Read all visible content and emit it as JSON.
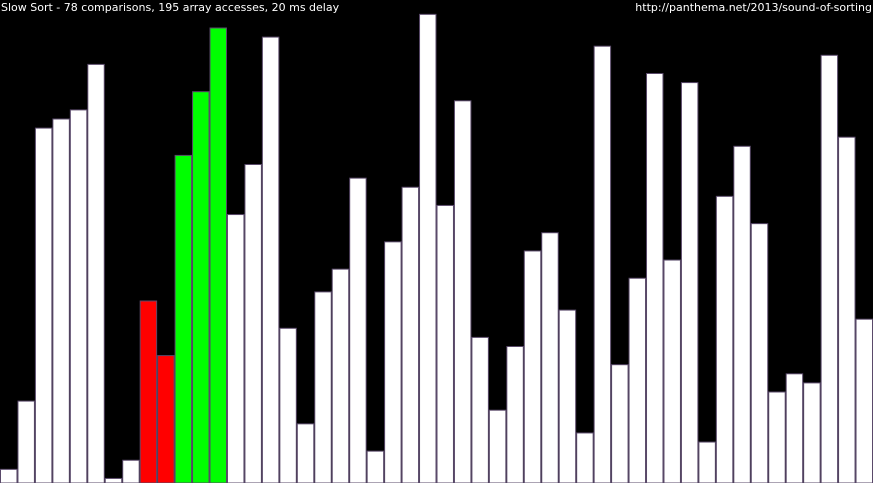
{
  "header": {
    "status": "Slow Sort - 78 comparisons, 195 array accesses, 20 ms delay",
    "url": "http://panthema.net/2013/sound-of-sorting"
  },
  "colors": {
    "background": "#000000",
    "bar_default": "#ffffff",
    "bar_compare": "#ff0000",
    "bar_sorted": "#00ff00",
    "bar_outline": "#5a4a6a"
  },
  "chart_data": {
    "type": "bar",
    "ylim": [
      0,
      100
    ],
    "values": [
      3,
      18,
      78,
      80,
      82,
      92,
      1,
      5,
      40,
      28,
      72,
      86,
      100,
      59,
      70,
      98,
      34,
      13,
      42,
      47,
      67,
      7,
      53,
      65,
      103,
      61,
      84,
      32,
      16,
      30,
      51,
      55,
      38,
      11,
      96,
      26,
      45,
      90,
      49,
      88,
      9,
      63,
      74,
      57,
      20,
      24,
      22,
      94,
      76,
      36
    ],
    "highlights": [
      "default",
      "default",
      "default",
      "default",
      "default",
      "default",
      "default",
      "default",
      "compare",
      "compare",
      "sorted",
      "sorted",
      "sorted",
      "default",
      "default",
      "default",
      "default",
      "default",
      "default",
      "default",
      "default",
      "default",
      "default",
      "default",
      "default",
      "default",
      "default",
      "default",
      "default",
      "default",
      "default",
      "default",
      "default",
      "default",
      "default",
      "default",
      "default",
      "default",
      "default",
      "default",
      "default",
      "default",
      "default",
      "default",
      "default",
      "default",
      "default",
      "default",
      "default",
      "default"
    ]
  }
}
